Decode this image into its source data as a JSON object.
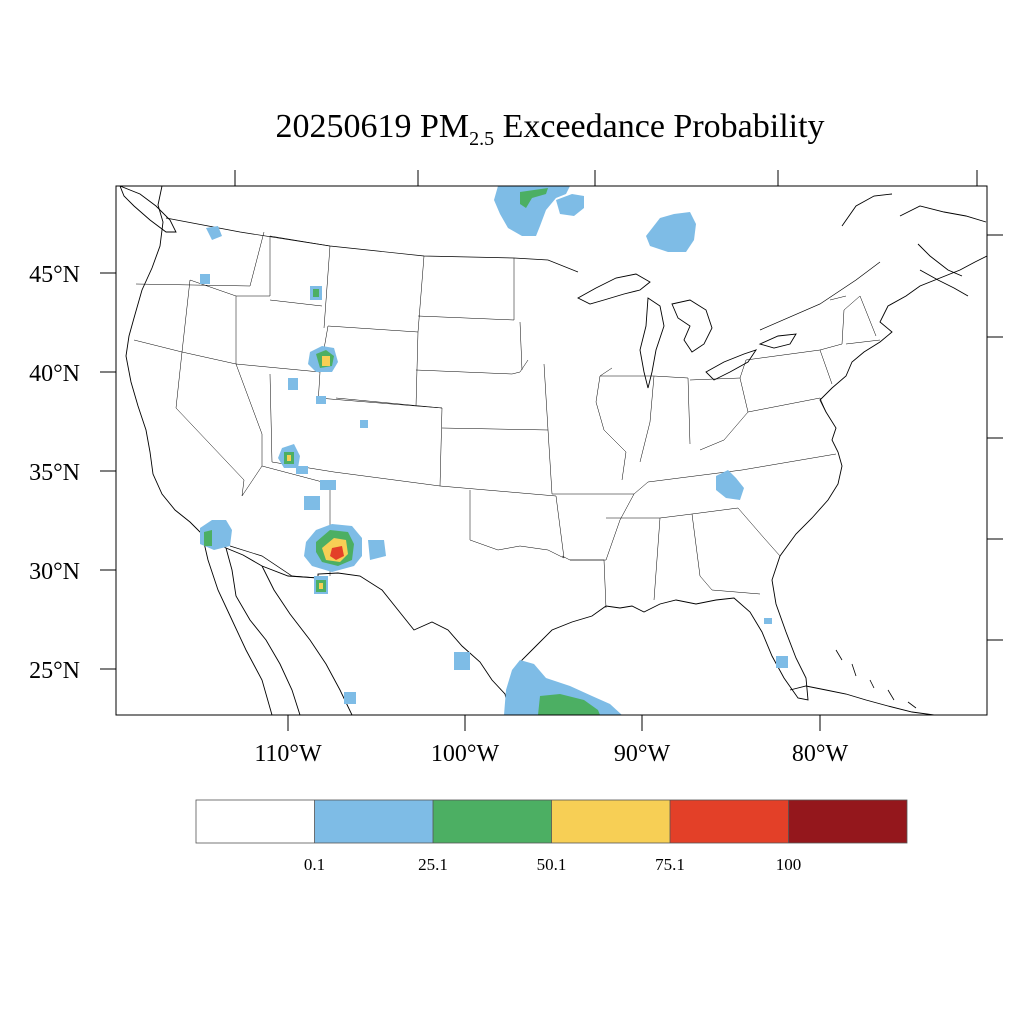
{
  "title": {
    "date": "20250619",
    "species": "PM",
    "species_sub": "2.5",
    "rest": "Exceedance Probability"
  },
  "map": {
    "lat_labels": [
      "45°N",
      "40°N",
      "35°N",
      "30°N",
      "25°N"
    ],
    "lon_labels": [
      "110°W",
      "100°W",
      "90°W",
      "80°W"
    ]
  },
  "legend": {
    "colors": [
      "#ffffff",
      "#7ebce6",
      "#4caf63",
      "#f7cf55",
      "#e34028",
      "#94171c"
    ],
    "labels": [
      "0.1",
      "25.1",
      "50.1",
      "75.1",
      "100"
    ]
  },
  "probability_colors": {
    "p0_1": "#7ebce6",
    "p25_1": "#4caf63",
    "p50_1": "#f7cf55",
    "p75_1": "#e34028",
    "p100": "#94171c"
  }
}
